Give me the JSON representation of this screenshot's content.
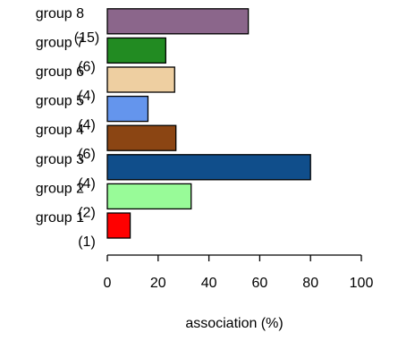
{
  "chart_data": {
    "type": "bar",
    "orientation": "horizontal",
    "categories": [
      "group 1",
      "group 2",
      "group 3",
      "group 4",
      "group 5",
      "group 6",
      "group 7",
      "group 8"
    ],
    "counts": [
      "(1)",
      "(2)",
      "(4)",
      "(6)",
      "(4)",
      "(4)",
      "(6)",
      "(15)"
    ],
    "values": [
      9,
      33,
      80,
      27,
      16,
      26.5,
      23,
      55.5
    ],
    "colors": [
      "#ff0000",
      "#98fb98",
      "#104e8b",
      "#8b4513",
      "#6495ed",
      "#eecfa1",
      "#228b22",
      "#8b668b"
    ],
    "xlabel": "association (%)",
    "ylabel": "",
    "title": "",
    "xlim": [
      0,
      100
    ],
    "xticks": [
      "0",
      "20",
      "40",
      "60",
      "80",
      "100"
    ],
    "grid": false
  }
}
